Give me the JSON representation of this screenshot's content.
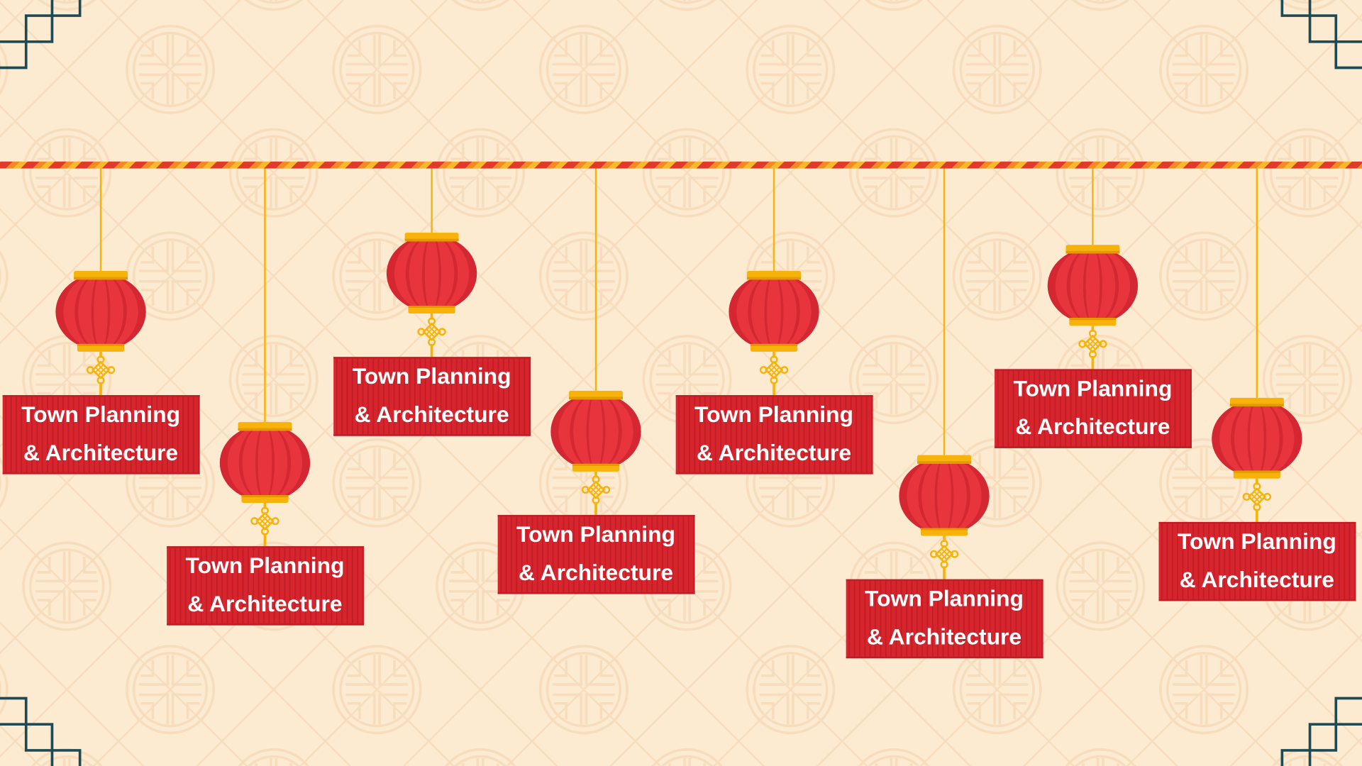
{
  "colors": {
    "background": "#FDEBD1",
    "pattern": "#F7DDBD",
    "corner_teal": "#1E4A55",
    "gold": "#F7B30A",
    "gold_dark": "#E39A00",
    "lantern_red_dark": "#D42731",
    "lantern_red_light": "#E8353D",
    "label_red": "#D7252E",
    "label_red_stripe": "#C21C26",
    "rope_red": "#E23A2A",
    "rope_orange": "#F28B22",
    "rope_yellow": "#F8B82C",
    "label_text": "#FFFFFF"
  },
  "icons": {
    "lantern": "red-lantern-icon",
    "knot": "chinese-knot-icon",
    "corner": "corner-ornament-icon",
    "background_motif": "medallion-icon"
  },
  "lanterns": [
    {
      "label_line1": "Town Planning",
      "label_line2": "& Architecture"
    },
    {
      "label_line1": "Town Planning",
      "label_line2": "& Architecture"
    },
    {
      "label_line1": "Town Planning",
      "label_line2": "& Architecture"
    },
    {
      "label_line1": "Town Planning",
      "label_line2": "& Architecture"
    },
    {
      "label_line1": "Town Planning",
      "label_line2": "& Architecture"
    },
    {
      "label_line1": "Town Planning",
      "label_line2": "& Architecture"
    },
    {
      "label_line1": "Town Planning",
      "label_line2": "& Architecture"
    },
    {
      "label_line1": "Town Planning",
      "label_line2": "& Architecture"
    }
  ]
}
